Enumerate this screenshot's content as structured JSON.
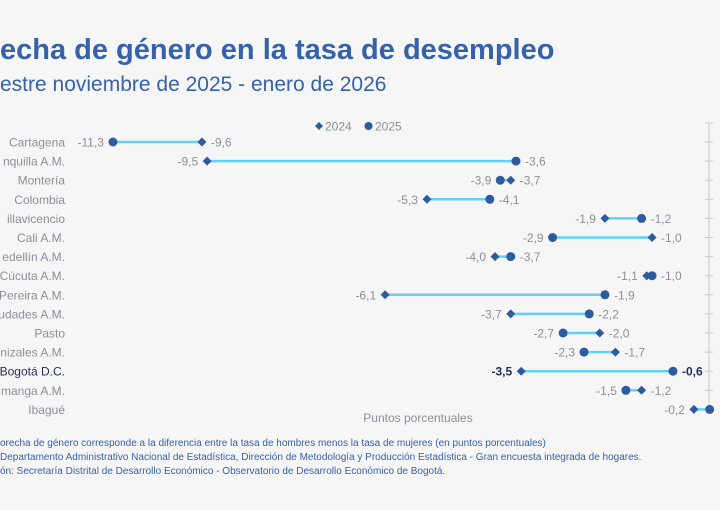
{
  "title": "echa de género en la tasa de desempleo",
  "subtitle": "estre noviembre de 2025 - enero de 2026",
  "notes": [
    "orecha de género corresponde a la diferencia entre la tasa de hombres menos la tasa de mujeres (en puntos porcentuales)",
    "Departamento Administrativo Nacional de Estadística, Dirección de Metodología y Producción Estadística - Gran encuesta integrada de hogares.",
    "ón: Secretaría Distrital de Desarrollo Económico - Observatorio de Desarrollo Económico de Bogotá."
  ],
  "colors": {
    "marker": "#2e5aa0",
    "connector": "#5fd3f7",
    "text": "#8a9099",
    "highlight": "#1f2d5a",
    "title": "#3562a8"
  },
  "chart_data": {
    "type": "dumbbell",
    "xlabel": "Puntos porcentuales",
    "legend": {
      "position": "top-center",
      "entries": [
        {
          "name": "2024",
          "marker": "diamond"
        },
        {
          "name": "2025",
          "marker": "circle"
        }
      ]
    },
    "categories": [
      "Cartagena",
      "nquilla A.M.",
      "Montería",
      "Colombia",
      "illavicencio",
      "Cali A.M.",
      "edellín A.M.",
      "Cúcuta A.M.",
      "Pereira A.M.",
      "udades A.M.",
      "Pasto",
      "nizales A.M.",
      "Bogotá D.C.",
      "manga A.M.",
      "Ibagué"
    ],
    "highlight": "Bogotá D.C.",
    "series": [
      {
        "name": "2024",
        "values": [
          -9.6,
          -9.5,
          -3.7,
          -5.3,
          -1.9,
          -1.0,
          -4.0,
          -1.1,
          -6.1,
          -3.7,
          -2.0,
          -1.7,
          -3.5,
          -1.2,
          -0.2
        ]
      },
      {
        "name": "2025",
        "values": [
          -11.3,
          -3.6,
          -3.9,
          -4.1,
          -1.2,
          -2.9,
          -3.7,
          -1.0,
          -1.9,
          -2.2,
          -2.7,
          -2.3,
          -0.6,
          -1.5,
          0.1
        ]
      }
    ],
    "value_labels": [
      [
        "-9,6",
        "-11,3"
      ],
      [
        "-9,5",
        "-3,6"
      ],
      [
        "-3,7",
        "-3,9"
      ],
      [
        "-5,3",
        "-4,1"
      ],
      [
        "-1,9",
        "-1,2"
      ],
      [
        "-1,0",
        "-2,9"
      ],
      [
        "-4,0",
        "-3,7"
      ],
      [
        "-1,1",
        "-1,0"
      ],
      [
        "-6,1",
        "-1,9"
      ],
      [
        "-3,7",
        "-2,2"
      ],
      [
        "-2,0",
        "-2,7"
      ],
      [
        "-1,7",
        "-2,3"
      ],
      [
        "-3,5",
        "-0,6"
      ],
      [
        "-1,2",
        "-1,5"
      ],
      [
        "-0,2",
        ""
      ]
    ]
  }
}
